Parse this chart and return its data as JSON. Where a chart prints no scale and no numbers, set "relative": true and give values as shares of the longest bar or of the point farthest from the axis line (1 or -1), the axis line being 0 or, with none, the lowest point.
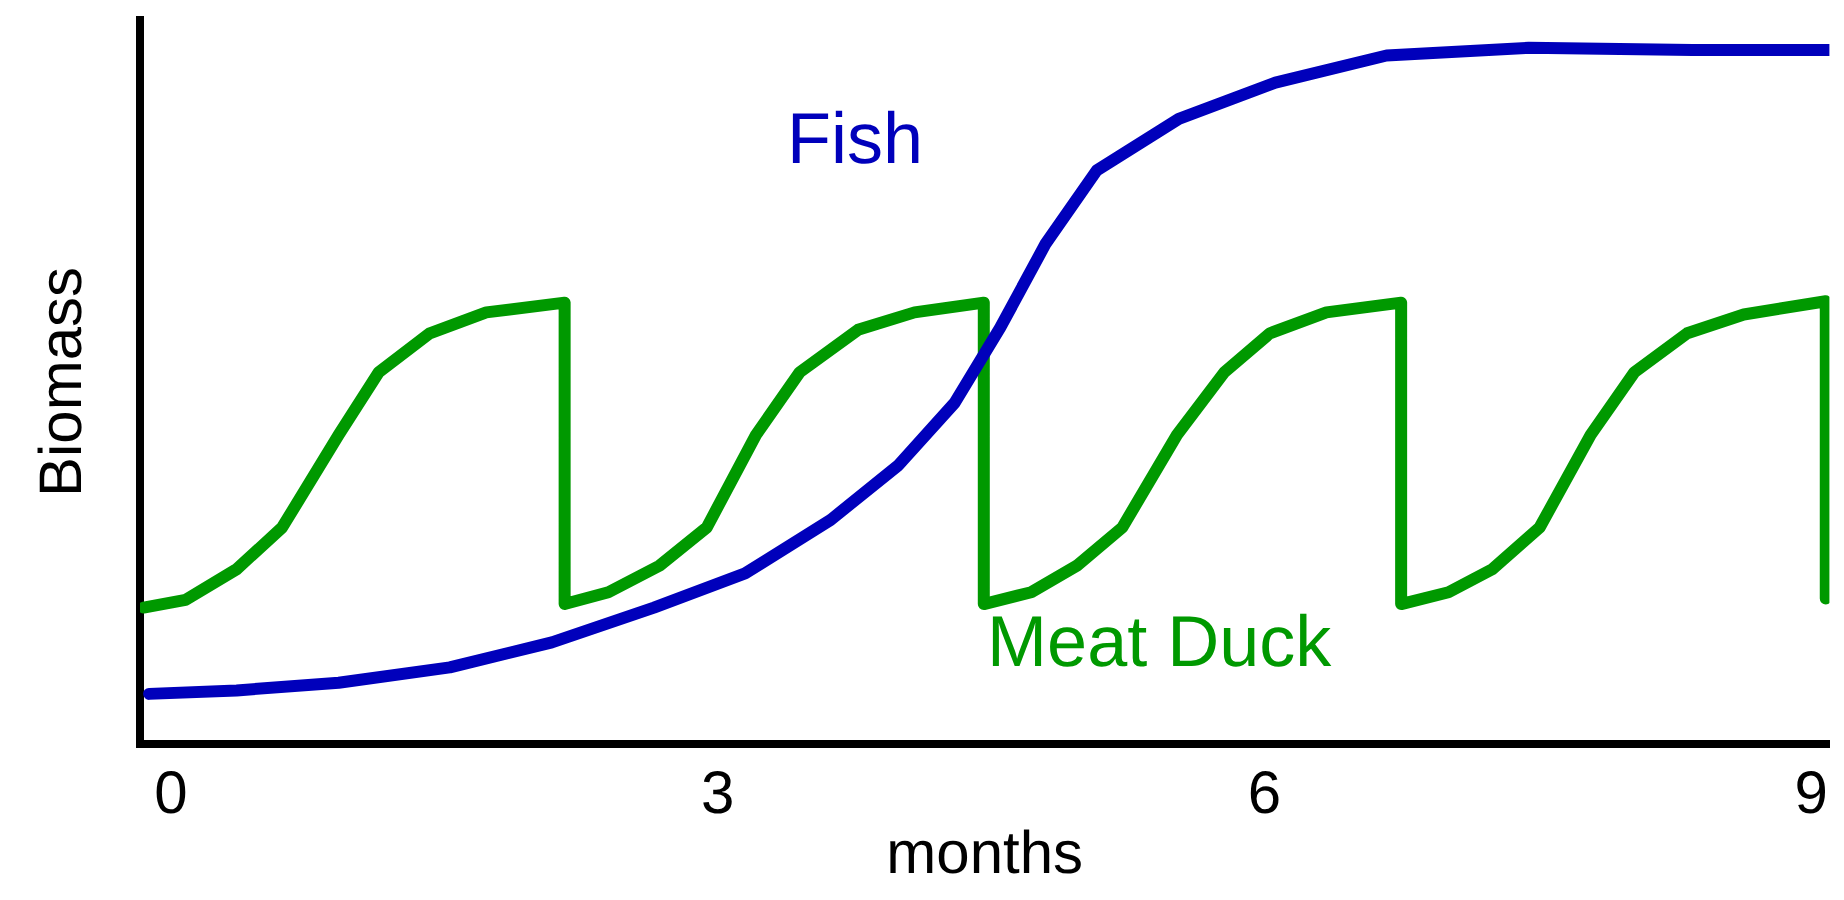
{
  "chart_data": {
    "type": "line",
    "xlabel": "months",
    "ylabel": "Biomass",
    "relative": true,
    "xlim": [
      -0.17,
      9.1
    ],
    "xticks": [
      0,
      3,
      6,
      9
    ],
    "tick_labels": "x",
    "grid": false,
    "legend": false,
    "marker": "none",
    "line_style": "solid",
    "series": [
      {
        "name": "Fish",
        "color": "#0000bb",
        "x": [
          -0.12,
          0.36,
          0.92,
          1.53,
          2.09,
          2.65,
          3.15,
          3.62,
          3.99,
          4.3,
          4.55,
          4.8,
          5.08,
          5.53,
          6.06,
          6.67,
          7.45,
          8.35,
          9.1
        ],
        "values": [
          0.072,
          0.077,
          0.088,
          0.11,
          0.146,
          0.196,
          0.245,
          0.322,
          0.4,
          0.49,
          0.598,
          0.719,
          0.824,
          0.898,
          0.95,
          0.989,
          1,
          0.997,
          0.997
        ]
      },
      {
        "name": "Meat Duck",
        "color": "#009900",
        "x": [
          -0.15,
          0.08,
          0.36,
          0.61,
          0.92,
          1.14,
          1.42,
          1.73,
          2.16,
          2.16,
          2.4,
          2.68,
          2.94,
          3.21,
          3.45,
          3.77,
          4.08,
          4.46,
          4.46,
          4.72,
          4.97,
          5.22,
          5.52,
          5.78,
          6.03,
          6.34,
          6.75,
          6.75,
          7.01,
          7.25,
          7.51,
          7.79,
          8.03,
          8.32,
          8.63,
          9.08,
          9.08
        ],
        "values": [
          0.196,
          0.207,
          0.251,
          0.311,
          0.444,
          0.534,
          0.59,
          0.62,
          0.634,
          0.201,
          0.218,
          0.256,
          0.311,
          0.444,
          0.534,
          0.595,
          0.62,
          0.634,
          0.201,
          0.218,
          0.256,
          0.311,
          0.444,
          0.534,
          0.59,
          0.62,
          0.634,
          0.201,
          0.218,
          0.251,
          0.311,
          0.444,
          0.534,
          0.59,
          0.617,
          0.636,
          0.209
        ]
      }
    ]
  }
}
